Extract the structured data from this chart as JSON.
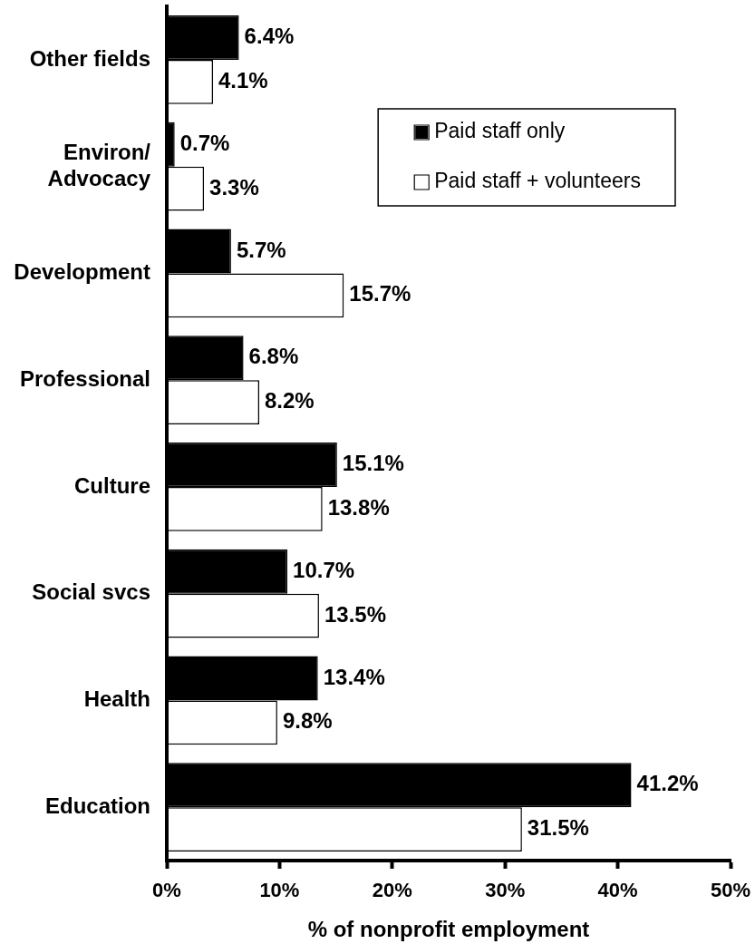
{
  "chart_data": {
    "type": "bar",
    "orientation": "horizontal",
    "categories": [
      "Other fields",
      "Environ/\nAdvocacy",
      "Development",
      "Professional",
      "Culture",
      "Social svcs",
      "Health",
      "Education"
    ],
    "series": [
      {
        "name": "Paid staff only",
        "color": "#000000",
        "values": [
          6.4,
          0.7,
          5.7,
          6.8,
          15.1,
          10.7,
          13.4,
          41.2
        ],
        "value_labels": [
          "6.4%",
          "0.7%",
          "5.7%",
          "6.8%",
          "15.1%",
          "10.7%",
          "13.4%",
          "41.2%"
        ]
      },
      {
        "name": "Paid staff + volunteers",
        "color": "#ffffff",
        "values": [
          4.1,
          3.3,
          15.7,
          8.2,
          13.8,
          13.5,
          9.8,
          31.5
        ],
        "value_labels": [
          "4.1%",
          "3.3%",
          "15.7%",
          "8.2%",
          "13.8%",
          "13.5%",
          "9.8%",
          "31.5%"
        ]
      }
    ],
    "xlabel": "% of nonprofit employment",
    "xlim": [
      0,
      50
    ],
    "xticks": [
      {
        "value": 0,
        "label": "0%"
      },
      {
        "value": 10,
        "label": "10%"
      },
      {
        "value": 20,
        "label": "20%"
      },
      {
        "value": 30,
        "label": "30%"
      },
      {
        "value": 40,
        "label": "40%"
      },
      {
        "value": 50,
        "label": "50%"
      }
    ],
    "legend": "top right"
  }
}
